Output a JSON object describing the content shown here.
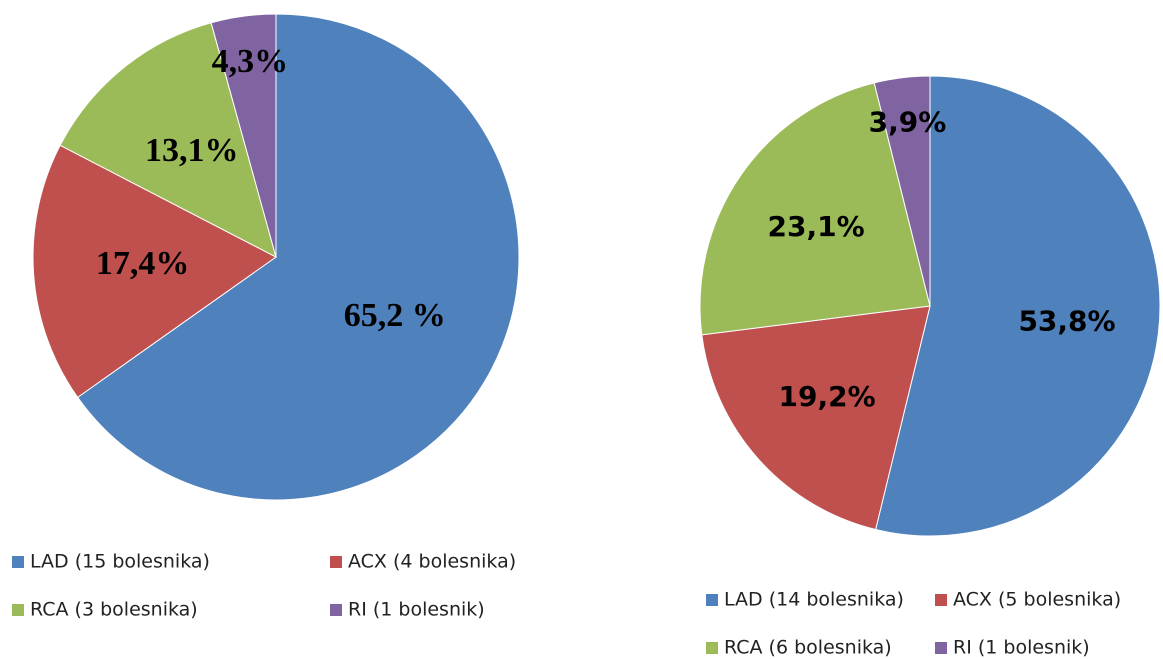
{
  "chart_data": [
    {
      "type": "pie",
      "categories": [
        "LAD (15 bolesnika)",
        "ACX (4 bolesnika)",
        "RCA (3 bolesnika)",
        "RI (1 bolesnik)"
      ],
      "values": [
        65.2,
        17.4,
        13.1,
        4.3
      ],
      "value_labels": [
        "65,2 %",
        "17,4%",
        "13,1%",
        "4,3%"
      ],
      "colors": [
        "#4f81bd",
        "#c0504d",
        "#9bbb59",
        "#8064a2"
      ]
    },
    {
      "type": "pie",
      "categories": [
        "LAD (14 bolesnika)",
        "ACX (5 bolesnika)",
        "RCA (6 bolesnika)",
        "RI (1 bolesnik)"
      ],
      "values": [
        53.8,
        19.2,
        23.1,
        3.9
      ],
      "value_labels": [
        "53,8%",
        "19,2%",
        "23,1%",
        "3,9%"
      ],
      "colors": [
        "#4f81bd",
        "#c0504d",
        "#9bbb59",
        "#8064a2"
      ]
    }
  ]
}
